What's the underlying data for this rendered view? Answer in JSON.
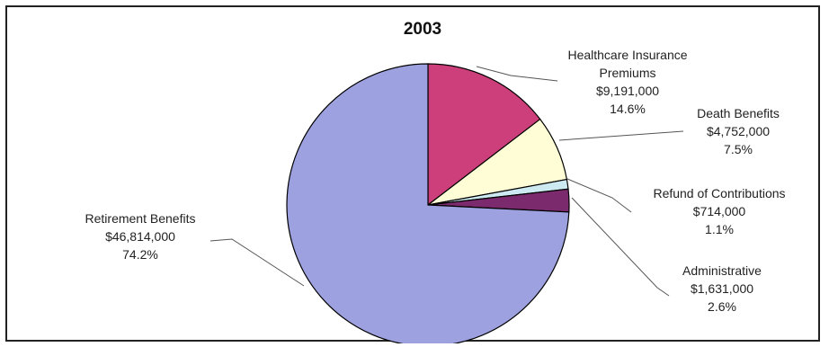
{
  "chart_data": {
    "type": "pie",
    "title": "2003",
    "slices": [
      {
        "label_lines": [
          "Healthcare Insurance",
          "Premiums"
        ],
        "amount": "$9,191,000",
        "percent_text": "14.6%",
        "value": 14.6,
        "color": "#cc3f7a"
      },
      {
        "label_lines": [
          "Death Benefits"
        ],
        "amount": "$4,752,000",
        "percent_text": "7.5%",
        "value": 7.5,
        "color": "#fefdd6"
      },
      {
        "label_lines": [
          "Refund of Contributions"
        ],
        "amount": "$714,000",
        "percent_text": "1.1%",
        "value": 1.1,
        "color": "#cde9f2"
      },
      {
        "label_lines": [
          "Administrative"
        ],
        "amount": "$1,631,000",
        "percent_text": "2.6%",
        "value": 2.6,
        "color": "#7b2a6d"
      },
      {
        "label_lines": [
          "Retirement Benefits"
        ],
        "amount": "$46,814,000",
        "percent_text": "74.2%",
        "value": 74.2,
        "color": "#9da1e0"
      }
    ]
  }
}
